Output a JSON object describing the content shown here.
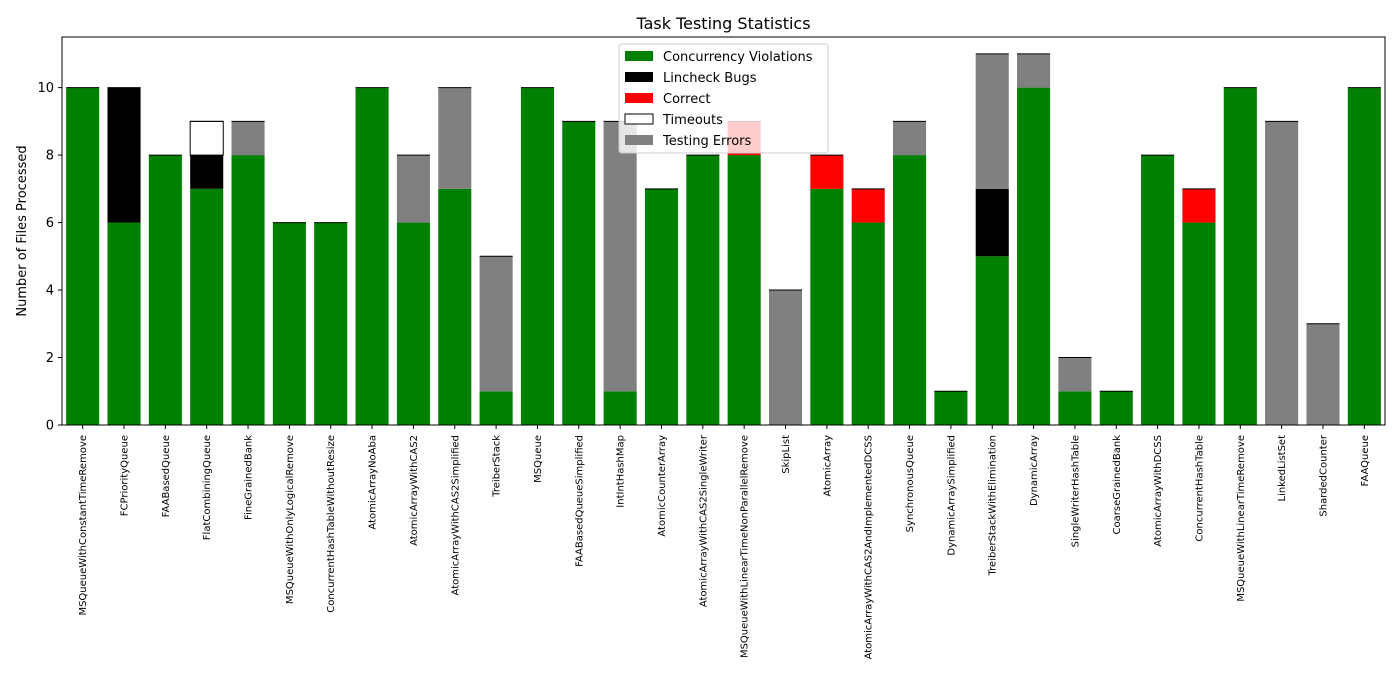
{
  "chart_data": {
    "type": "bar",
    "stacked": true,
    "title": "Task Testing Statistics",
    "xlabel": "",
    "ylabel": "Number of Files Processed",
    "ylim": [
      0,
      11.5
    ],
    "yticks": [
      0,
      2,
      4,
      6,
      8,
      10
    ],
    "grid": false,
    "legend_position": "top-center",
    "categories": [
      "MSQueueWithConstantTimeRemove",
      "FCPriorityQueue",
      "FAABasedQueue",
      "FlatCombiningQueue",
      "FineGrainedBank",
      "MSQueueWithOnlyLogicalRemove",
      "ConcurrentHashTableWithoutResize",
      "AtomicArrayNoAba",
      "AtomicArrayWithCAS2",
      "AtomicArrayWithCAS2Simplified",
      "TreiberStack",
      "MSQueue",
      "FAABasedQueueSimplified",
      "IntIntHashMap",
      "AtomicCounterArray",
      "AtomicArrayWithCAS2SingleWriter",
      "MSQueueWithLinearTimeNonParallelRemove",
      "SkipList",
      "AtomicArray",
      "AtomicArrayWithCAS2AndImplementedDCSS",
      "SynchronousQueue",
      "DynamicArraySimplified",
      "TreiberStackWithElimination",
      "DynamicArray",
      "SingleWriterHashTable",
      "CoarseGrainedBank",
      "AtomicArrayWithDCSS",
      "ConcurrentHashTable",
      "MSQueueWithLinearTimeRemove",
      "LinkedListSet",
      "ShardedCounter",
      "FAAQueue"
    ],
    "series": [
      {
        "name": "Concurrency Violations",
        "color": "#008000",
        "values": [
          10,
          6,
          8,
          7,
          8,
          6,
          6,
          10,
          6,
          7,
          1,
          10,
          9,
          1,
          7,
          8,
          8,
          0,
          7,
          6,
          8,
          1,
          5,
          10,
          1,
          1,
          8,
          6,
          10,
          0,
          0,
          10
        ]
      },
      {
        "name": "Lincheck Bugs",
        "color": "#000000",
        "values": [
          0,
          4,
          0,
          1,
          0,
          0,
          0,
          0,
          0,
          0,
          0,
          0,
          0,
          0,
          0,
          0,
          0,
          0,
          0,
          0,
          0,
          0,
          2,
          0,
          0,
          0,
          0,
          0,
          0,
          0,
          0,
          0
        ]
      },
      {
        "name": "Correct",
        "color": "#ff0000",
        "values": [
          0,
          0,
          0,
          0,
          0,
          0,
          0,
          0,
          0,
          0,
          0,
          0,
          0,
          0,
          0,
          0,
          1,
          0,
          1,
          1,
          0,
          0,
          0,
          0,
          0,
          0,
          0,
          1,
          0,
          0,
          0,
          0
        ]
      },
      {
        "name": "Timeouts",
        "color": "#ffffff",
        "edge": "#000000",
        "values": [
          0,
          0,
          0,
          1,
          0,
          0,
          0,
          0,
          0,
          0,
          0,
          0,
          0,
          0,
          0,
          0,
          0,
          0,
          0,
          0,
          0,
          0,
          0,
          0,
          0,
          0,
          0,
          0,
          0,
          0,
          0,
          0
        ]
      },
      {
        "name": "Testing Errors",
        "color": "#808080",
        "values": [
          0,
          0,
          0,
          0,
          1,
          0,
          0,
          0,
          2,
          3,
          4,
          0,
          0,
          8,
          0,
          0,
          0,
          4,
          0,
          0,
          1,
          0,
          4,
          1,
          1,
          0,
          0,
          0,
          0,
          9,
          3,
          0
        ]
      }
    ]
  }
}
